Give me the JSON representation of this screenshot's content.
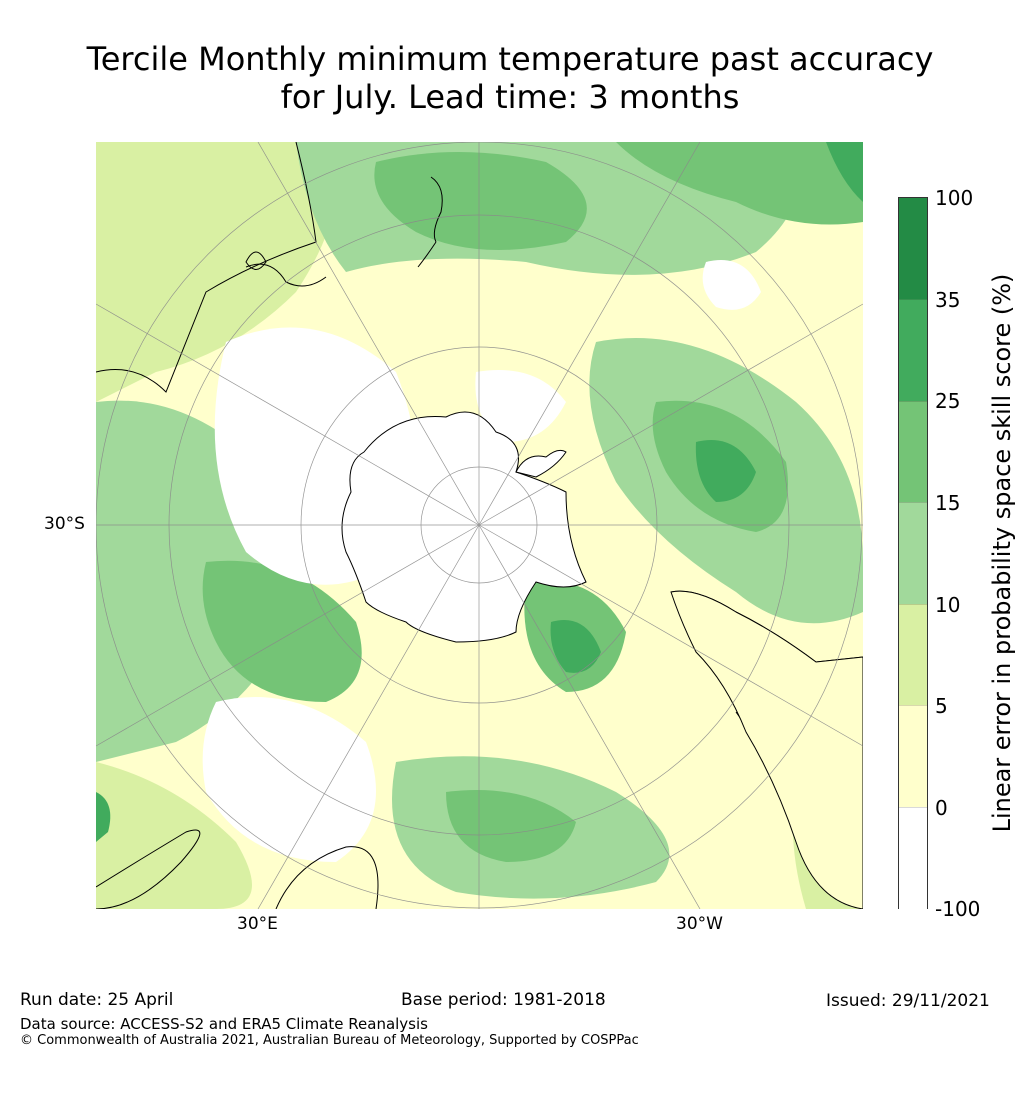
{
  "title_line1": "Tercile Monthly minimum temperature past accuracy",
  "title_line2": "for July. Lead time: 3 months",
  "map": {
    "lat_label": "30°S",
    "lon_labels": [
      "30°E",
      "30°W"
    ]
  },
  "colorbar": {
    "title": "Linear error in probability space skill score (%)",
    "ticks": [
      "100",
      "35",
      "25",
      "15",
      "10",
      "5",
      "0",
      "-100"
    ],
    "colors": [
      "#238b45",
      "#41ab5d",
      "#74c476",
      "#a1d99b",
      "#d9f0a3",
      "#ffffcc",
      "#ffffff"
    ]
  },
  "footer": {
    "run_date": "Run date: 25 April",
    "base_period": "Base period: 1981-2018",
    "issued": "Issued: 29/11/2021",
    "data_source": "Data source: ACCESS-S2 and ERA5 Climate Reanalysis",
    "copyright": "© Commonwealth of Australia 2021, Australian Bureau of Meteorology, Supported by COSPPac"
  }
}
